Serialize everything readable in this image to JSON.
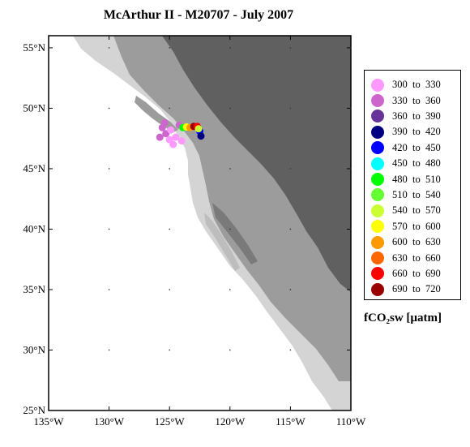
{
  "title": "McArthur II - M20707 - July 2007",
  "map": {
    "lon_range": [
      -135,
      -110
    ],
    "lat_range": [
      25,
      56
    ],
    "lat_ticks": [
      "25°N",
      "30°N",
      "35°N",
      "40°N",
      "45°N",
      "50°N",
      "55°N"
    ],
    "lon_ticks": [
      "135°W",
      "130°W",
      "125°W",
      "120°W",
      "115°W",
      "110°W"
    ],
    "colors": {
      "ocean": "#ffffff",
      "land_low": "#d8d8d8",
      "land_mid": "#9a9a9a",
      "land_high": "#5e5e5e"
    }
  },
  "legend": {
    "items": [
      {
        "label": "300  to  330",
        "color": "#ff99ff"
      },
      {
        "label": "330  to  360",
        "color": "#cc66cc"
      },
      {
        "label": "360  to  390",
        "color": "#663399"
      },
      {
        "label": "390  to  420",
        "color": "#000080"
      },
      {
        "label": "420  to  450",
        "color": "#0000ff"
      },
      {
        "label": "450  to  480",
        "color": "#00ffff"
      },
      {
        "label": "480  to  510",
        "color": "#00ff00"
      },
      {
        "label": "510  to  540",
        "color": "#66ff33"
      },
      {
        "label": "540  to  570",
        "color": "#ccff33"
      },
      {
        "label": "570  to  600",
        "color": "#ffff00"
      },
      {
        "label": "600  to  630",
        "color": "#ff9900"
      },
      {
        "label": "630  to  660",
        "color": "#ff6600"
      },
      {
        "label": "660  to  690",
        "color": "#ff0000"
      },
      {
        "label": "690  to  720",
        "color": "#990000"
      }
    ],
    "units": "fCO₂sw [µatm]"
  },
  "track_points": [
    {
      "lon": -125.6,
      "lat": 48.4,
      "color": "#cc66cc"
    },
    {
      "lon": -125.3,
      "lat": 47.9,
      "color": "#cc66cc"
    },
    {
      "lon": -125.0,
      "lat": 47.4,
      "color": "#ff99ff"
    },
    {
      "lon": -124.7,
      "lat": 47.0,
      "color": "#ff99ff"
    },
    {
      "lon": -125.4,
      "lat": 48.8,
      "color": "#cc66cc"
    },
    {
      "lon": -124.9,
      "lat": 48.2,
      "color": "#ff99ff"
    },
    {
      "lon": -124.5,
      "lat": 47.6,
      "color": "#ff99ff"
    },
    {
      "lon": -124.2,
      "lat": 48.6,
      "color": "#cc66cc"
    },
    {
      "lon": -125.8,
      "lat": 47.6,
      "color": "#cc66cc"
    },
    {
      "lon": -124.0,
      "lat": 47.3,
      "color": "#ff99ff"
    },
    {
      "lon": -123.9,
      "lat": 48.4,
      "color": "#00ff00"
    },
    {
      "lon": -123.6,
      "lat": 48.45,
      "color": "#ffff00"
    },
    {
      "lon": -123.3,
      "lat": 48.4,
      "color": "#ff9900"
    },
    {
      "lon": -123.0,
      "lat": 48.5,
      "color": "#990000"
    },
    {
      "lon": -122.7,
      "lat": 48.5,
      "color": "#ff0000"
    },
    {
      "lon": -122.5,
      "lat": 48.1,
      "color": "#0000ff"
    },
    {
      "lon": -122.4,
      "lat": 47.7,
      "color": "#000080"
    },
    {
      "lon": -122.6,
      "lat": 48.3,
      "color": "#ccff33"
    }
  ]
}
